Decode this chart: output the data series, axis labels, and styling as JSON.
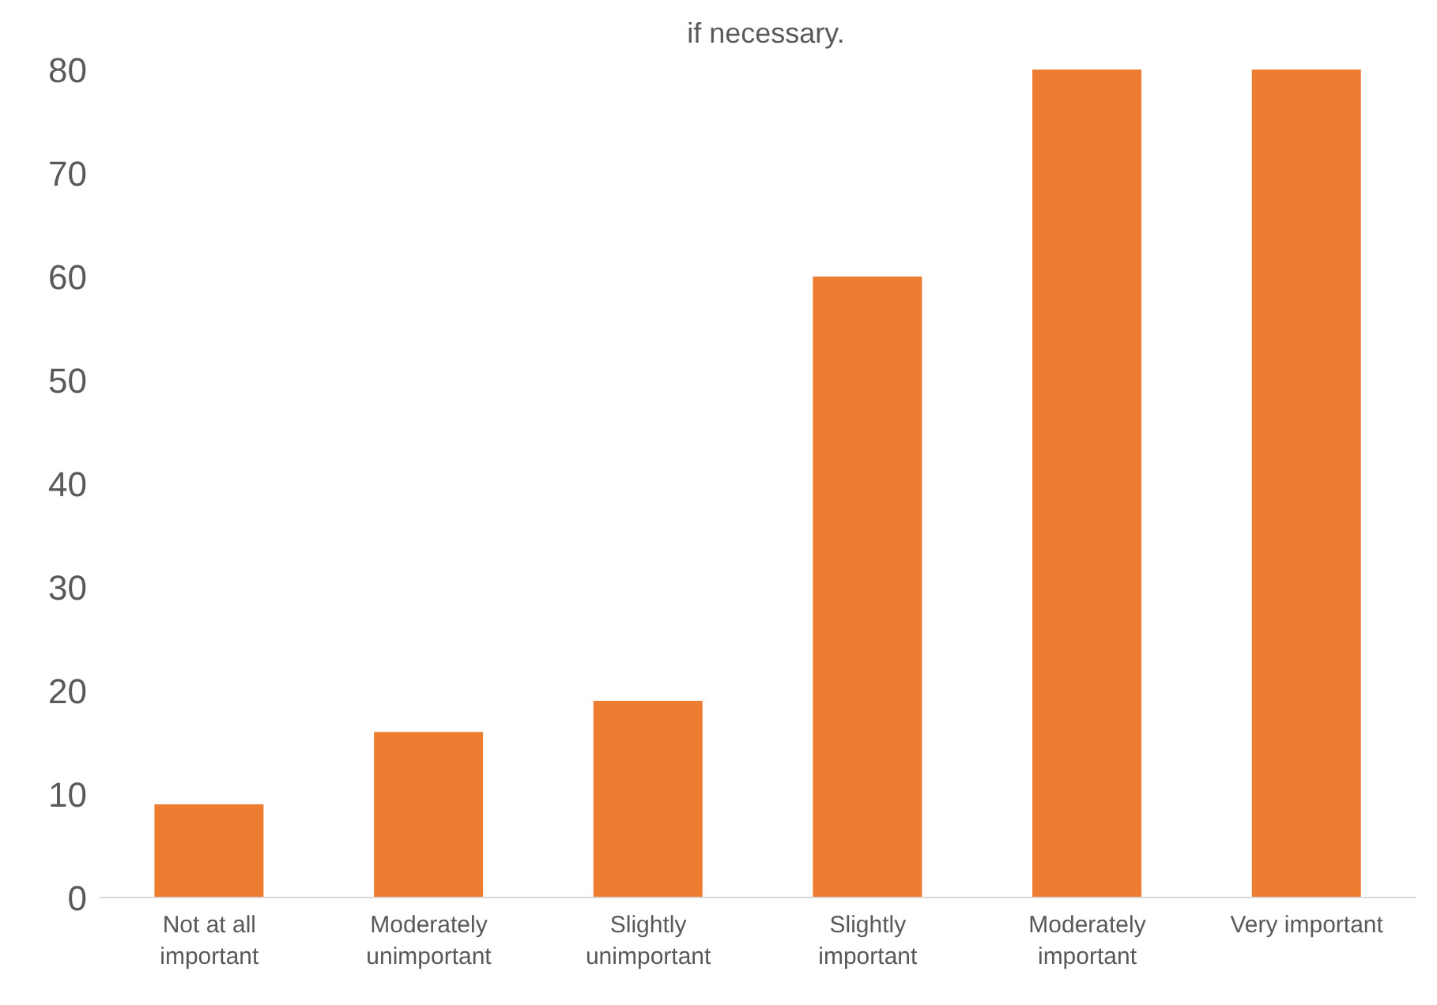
{
  "chart_data": {
    "type": "bar",
    "title": "if necessary.",
    "categories": [
      "Not at all important",
      "Moderately unimportant",
      "Slightly unimportant",
      "Slightly important",
      "Moderately important",
      "Very important"
    ],
    "values": [
      9,
      16,
      19,
      60,
      80,
      80
    ],
    "color": "#ed7d31",
    "ylim": [
      0,
      80
    ],
    "yticks": [
      0,
      10,
      20,
      30,
      40,
      50,
      60,
      70,
      80
    ],
    "grid": false
  }
}
